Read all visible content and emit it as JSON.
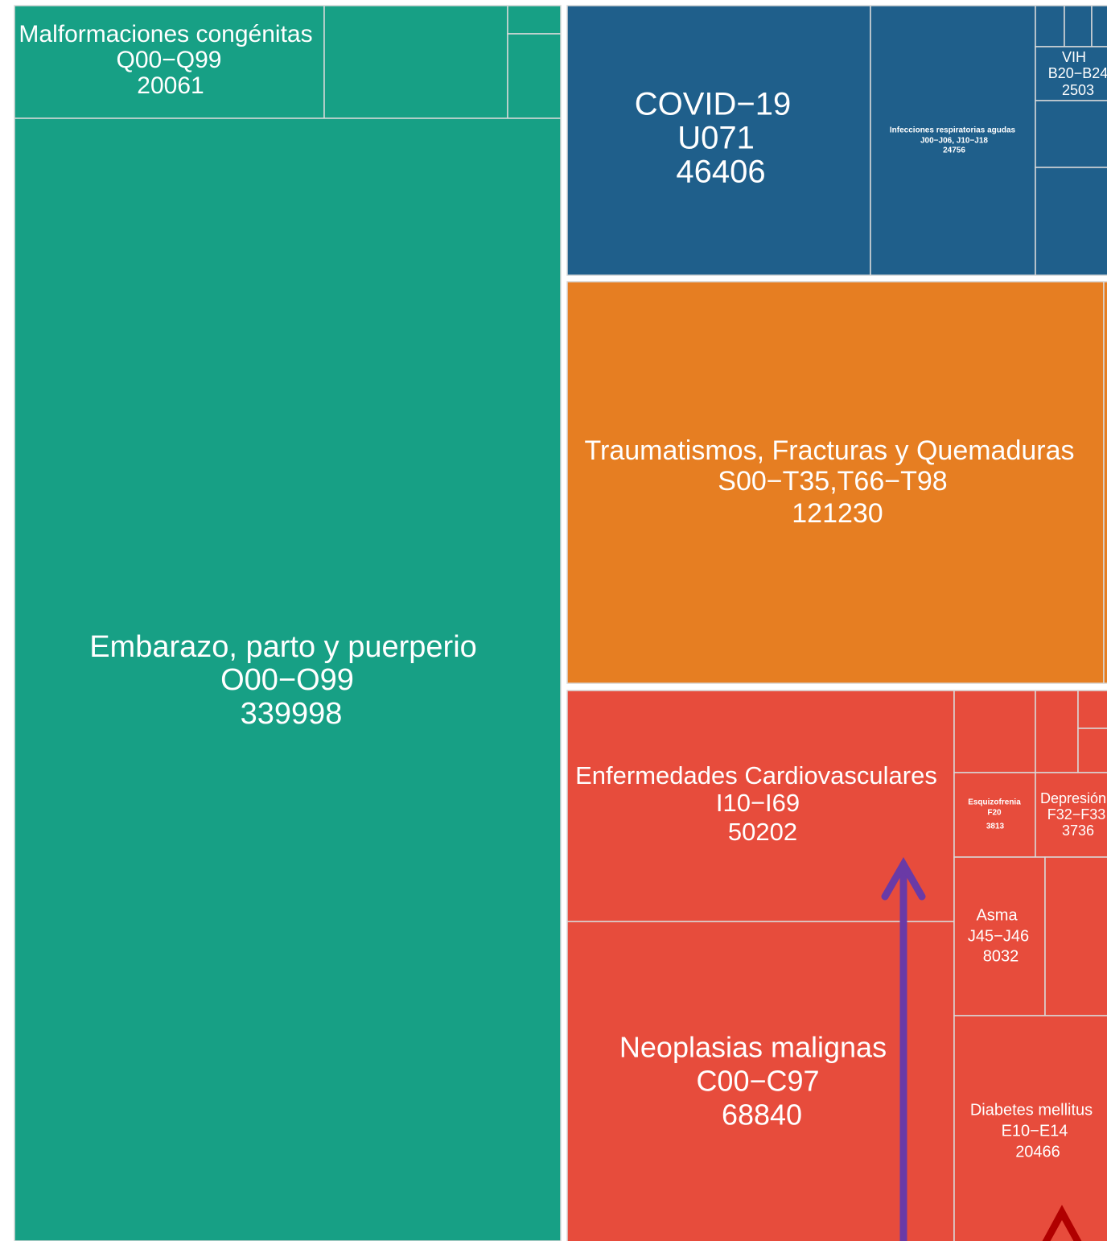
{
  "tiles": [
    {
      "name": "Malformaciones congénitas",
      "code": "Q00−Q99",
      "value": 20061
    },
    {
      "name": "Embarazo, parto y puerperio",
      "code": "O00−O99",
      "value": 339998
    },
    {
      "name": "COVID−19",
      "code": "U071",
      "value": 46406
    },
    {
      "name": "Infecciones respiratorias agudas",
      "code": "J00−J06, J10−J18",
      "value": 24756
    },
    {
      "name": "VIH",
      "code": "B20−B24",
      "value": 2503
    },
    {
      "name": "Traumatismos, Fracturas y Quemaduras",
      "code": "S00−T35,T66−T98",
      "value": 121230
    },
    {
      "name": "Enfermedades Cardiovasculares",
      "code": "I10−I69",
      "value": 50202
    },
    {
      "name": "Neoplasias malignas",
      "code": "C00−C97",
      "value": 68840
    },
    {
      "name": "Esquizofrenia",
      "code": "F20",
      "value": 3813
    },
    {
      "name": "Depresión",
      "code": "F32−F33",
      "value": 3736
    },
    {
      "name": "Asma",
      "code": "J45−J46",
      "value": 8032
    },
    {
      "name": "Diabetes mellitus",
      "code": "E10−E14",
      "value": 20466
    }
  ]
}
